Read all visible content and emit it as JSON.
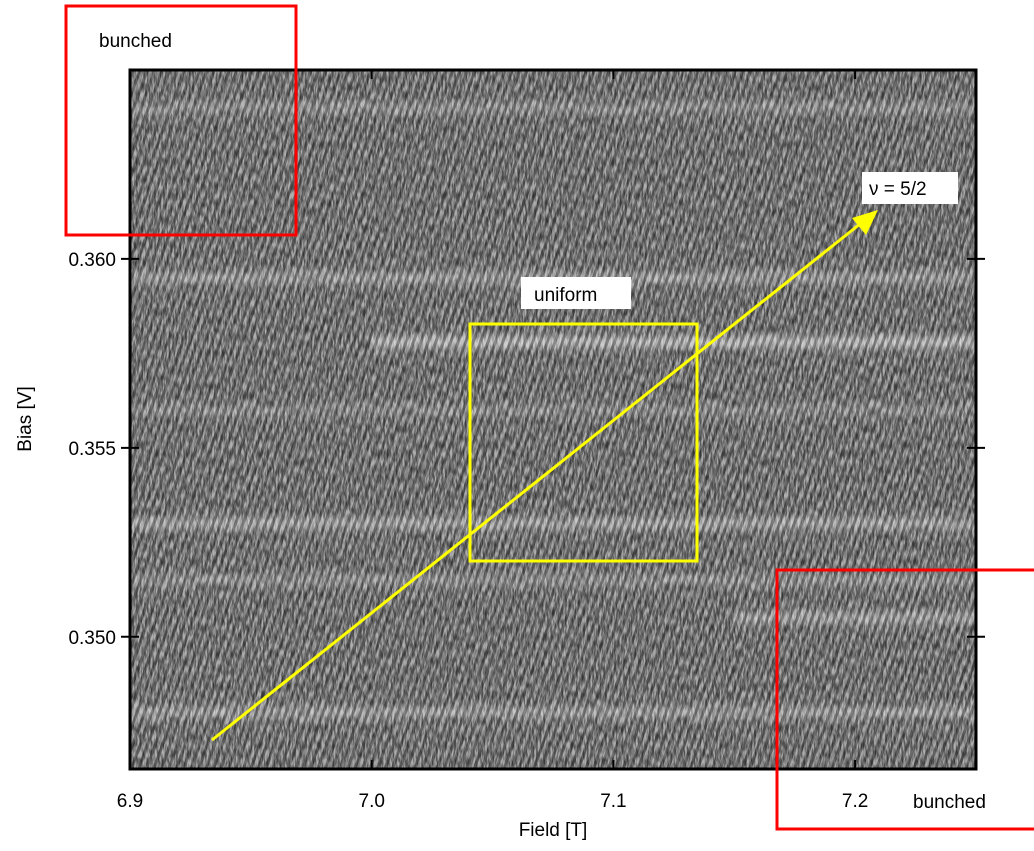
{
  "chart_data": {
    "type": "heatmap",
    "title": "",
    "xlabel": "Field [T]",
    "ylabel": "Bias [V]",
    "xlim": [
      6.9,
      7.25
    ],
    "ylim": [
      0.3465,
      0.365
    ],
    "x_ticks": [
      6.9,
      7.0,
      7.1,
      7.2
    ],
    "x_tick_labels": [
      "6.9",
      "7.0",
      "7.1",
      "7.2"
    ],
    "y_ticks": [
      0.35,
      0.355,
      0.36
    ],
    "y_tick_labels": [
      "0.350",
      "0.355",
      "0.360"
    ],
    "colormap": "grayscale",
    "grid": false,
    "bright_bands_bias": [
      {
        "bias": 0.364,
        "x_start": 6.9,
        "x_end": 7.25,
        "strength": 0.3
      },
      {
        "bias": 0.3595,
        "x_start": 6.9,
        "x_end": 7.25,
        "strength": 0.4
      },
      {
        "bias": 0.3578,
        "x_start": 7.0,
        "x_end": 7.25,
        "strength": 0.6
      },
      {
        "bias": 0.356,
        "x_start": 6.9,
        "x_end": 7.25,
        "strength": 0.25
      },
      {
        "bias": 0.353,
        "x_start": 6.9,
        "x_end": 7.25,
        "strength": 0.45
      },
      {
        "bias": 0.3515,
        "x_start": 6.9,
        "x_end": 7.25,
        "strength": 0.3
      },
      {
        "bias": 0.3505,
        "x_start": 7.15,
        "x_end": 7.25,
        "strength": 0.45
      },
      {
        "bias": 0.348,
        "x_start": 6.9,
        "x_end": 7.25,
        "strength": 0.4
      }
    ],
    "annotations": {
      "regions": [
        {
          "id": "bunched-top",
          "label": "bunched",
          "color": "#ff0000",
          "x_range": [
            6.86,
            6.97
          ],
          "y_range": [
            0.3606,
            0.3655
          ]
        },
        {
          "id": "uniform",
          "label": "uniform",
          "color": "#ffff00",
          "x_range": [
            7.04,
            7.133
          ],
          "y_range": [
            0.352,
            0.3583
          ]
        },
        {
          "id": "bunched-bottom",
          "label": "bunched",
          "color": "#ff0000",
          "x_range": [
            7.165,
            7.28
          ],
          "y_range": [
            0.3442,
            0.3506
          ]
        }
      ],
      "arrow": {
        "label": "ν = 5/2",
        "color": "#ffff00",
        "from": [
          6.933,
          0.3471
        ],
        "to": [
          7.208,
          0.3611
        ]
      }
    }
  }
}
